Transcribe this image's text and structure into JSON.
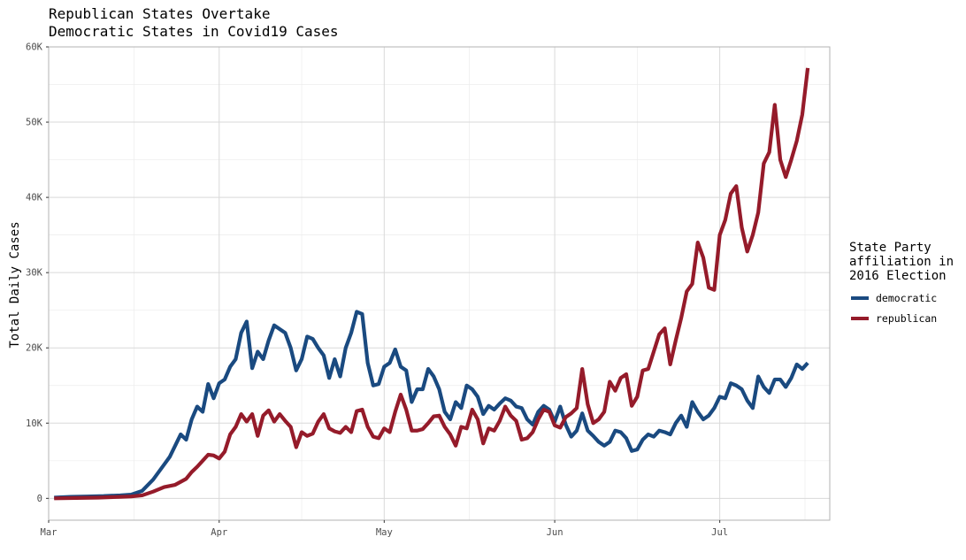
{
  "chart_data": {
    "type": "line",
    "title_lines": [
      "Republican States Overtake",
      "Democratic States in Covid19 Cases"
    ],
    "ylabel": "Total Daily Cases",
    "xlabel": "",
    "ylim": [
      0,
      60000
    ],
    "xlim_dates": [
      "2020-03-01",
      "2020-07-21"
    ],
    "y_ticks": [
      {
        "value": 0,
        "label": "0"
      },
      {
        "value": 10000,
        "label": "10K"
      },
      {
        "value": 20000,
        "label": "20K"
      },
      {
        "value": 30000,
        "label": "30K"
      },
      {
        "value": 40000,
        "label": "40K"
      },
      {
        "value": 50000,
        "label": "50K"
      },
      {
        "value": 60000,
        "label": "60K"
      }
    ],
    "x_ticks": [
      {
        "date": "2020-03-01",
        "label": "Mar"
      },
      {
        "date": "2020-04-01",
        "label": "Apr"
      },
      {
        "date": "2020-05-01",
        "label": "May"
      },
      {
        "date": "2020-06-01",
        "label": "Jun"
      },
      {
        "date": "2020-07-01",
        "label": "Jul"
      }
    ],
    "grid": true,
    "legend": {
      "title_lines": [
        "State Party",
        "affiliation in",
        "2016 Election"
      ],
      "placement": "right"
    },
    "series": [
      {
        "name": "democratic",
        "color": "#1a4a80",
        "points": [
          [
            "2020-03-02",
            100
          ],
          [
            "2020-03-05",
            200
          ],
          [
            "2020-03-08",
            250
          ],
          [
            "2020-03-11",
            300
          ],
          [
            "2020-03-14",
            400
          ],
          [
            "2020-03-16",
            500
          ],
          [
            "2020-03-18",
            1000
          ],
          [
            "2020-03-20",
            2500
          ],
          [
            "2020-03-22",
            4500
          ],
          [
            "2020-03-23",
            5500
          ],
          [
            "2020-03-24",
            7000
          ],
          [
            "2020-03-25",
            8500
          ],
          [
            "2020-03-26",
            7800
          ],
          [
            "2020-03-27",
            10500
          ],
          [
            "2020-03-28",
            12200
          ],
          [
            "2020-03-29",
            11500
          ],
          [
            "2020-03-30",
            15200
          ],
          [
            "2020-03-31",
            13300
          ],
          [
            "2020-04-01",
            15300
          ],
          [
            "2020-04-02",
            15800
          ],
          [
            "2020-04-03",
            17500
          ],
          [
            "2020-04-04",
            18500
          ],
          [
            "2020-04-05",
            22000
          ],
          [
            "2020-04-06",
            23500
          ],
          [
            "2020-04-07",
            17300
          ],
          [
            "2020-04-08",
            19500
          ],
          [
            "2020-04-09",
            18500
          ],
          [
            "2020-04-10",
            21000
          ],
          [
            "2020-04-11",
            23000
          ],
          [
            "2020-04-12",
            22500
          ],
          [
            "2020-04-13",
            22000
          ],
          [
            "2020-04-14",
            20000
          ],
          [
            "2020-04-15",
            17000
          ],
          [
            "2020-04-16",
            18500
          ],
          [
            "2020-04-17",
            21500
          ],
          [
            "2020-04-18",
            21200
          ],
          [
            "2020-04-19",
            20000
          ],
          [
            "2020-04-20",
            19000
          ],
          [
            "2020-04-21",
            16000
          ],
          [
            "2020-04-22",
            18500
          ],
          [
            "2020-04-23",
            16200
          ],
          [
            "2020-04-24",
            20000
          ],
          [
            "2020-04-25",
            22000
          ],
          [
            "2020-04-26",
            24800
          ],
          [
            "2020-04-27",
            24500
          ],
          [
            "2020-04-28",
            18000
          ],
          [
            "2020-04-29",
            15000
          ],
          [
            "2020-04-30",
            15200
          ],
          [
            "2020-05-01",
            17500
          ],
          [
            "2020-05-02",
            18000
          ],
          [
            "2020-05-03",
            19800
          ],
          [
            "2020-05-04",
            17500
          ],
          [
            "2020-05-05",
            17000
          ],
          [
            "2020-05-06",
            12800
          ],
          [
            "2020-05-07",
            14500
          ],
          [
            "2020-05-08",
            14500
          ],
          [
            "2020-05-09",
            17200
          ],
          [
            "2020-05-10",
            16200
          ],
          [
            "2020-05-11",
            14500
          ],
          [
            "2020-05-12",
            11500
          ],
          [
            "2020-05-13",
            10500
          ],
          [
            "2020-05-14",
            12800
          ],
          [
            "2020-05-15",
            12000
          ],
          [
            "2020-05-16",
            15000
          ],
          [
            "2020-05-17",
            14500
          ],
          [
            "2020-05-18",
            13500
          ],
          [
            "2020-05-19",
            11200
          ],
          [
            "2020-05-20",
            12300
          ],
          [
            "2020-05-21",
            11800
          ],
          [
            "2020-05-22",
            12600
          ],
          [
            "2020-05-23",
            13300
          ],
          [
            "2020-05-24",
            13000
          ],
          [
            "2020-05-25",
            12200
          ],
          [
            "2020-05-26",
            12000
          ],
          [
            "2020-05-27",
            10500
          ],
          [
            "2020-05-28",
            9800
          ],
          [
            "2020-05-29",
            11500
          ],
          [
            "2020-05-30",
            12300
          ],
          [
            "2020-05-31",
            11800
          ],
          [
            "2020-06-01",
            10200
          ],
          [
            "2020-06-02",
            12200
          ],
          [
            "2020-06-03",
            9800
          ],
          [
            "2020-06-04",
            8200
          ],
          [
            "2020-06-05",
            9000
          ],
          [
            "2020-06-06",
            11300
          ],
          [
            "2020-06-07",
            9000
          ],
          [
            "2020-06-08",
            8300
          ],
          [
            "2020-06-09",
            7500
          ],
          [
            "2020-06-10",
            7000
          ],
          [
            "2020-06-11",
            7500
          ],
          [
            "2020-06-12",
            9000
          ],
          [
            "2020-06-13",
            8800
          ],
          [
            "2020-06-14",
            8000
          ],
          [
            "2020-06-15",
            6300
          ],
          [
            "2020-06-16",
            6500
          ],
          [
            "2020-06-17",
            7800
          ],
          [
            "2020-06-18",
            8500
          ],
          [
            "2020-06-19",
            8200
          ],
          [
            "2020-06-20",
            9000
          ],
          [
            "2020-06-21",
            8800
          ],
          [
            "2020-06-22",
            8500
          ],
          [
            "2020-06-23",
            10000
          ],
          [
            "2020-06-24",
            11000
          ],
          [
            "2020-06-25",
            9500
          ],
          [
            "2020-06-26",
            12800
          ],
          [
            "2020-06-27",
            11500
          ],
          [
            "2020-06-28",
            10500
          ],
          [
            "2020-06-29",
            11000
          ],
          [
            "2020-06-30",
            12000
          ],
          [
            "2020-07-01",
            13500
          ],
          [
            "2020-07-02",
            13300
          ],
          [
            "2020-07-03",
            15300
          ],
          [
            "2020-07-04",
            15000
          ],
          [
            "2020-07-05",
            14500
          ],
          [
            "2020-07-06",
            13000
          ],
          [
            "2020-07-07",
            12000
          ],
          [
            "2020-07-08",
            16200
          ],
          [
            "2020-07-09",
            14800
          ],
          [
            "2020-07-10",
            14000
          ],
          [
            "2020-07-11",
            15800
          ],
          [
            "2020-07-12",
            15800
          ],
          [
            "2020-07-13",
            14800
          ],
          [
            "2020-07-14",
            16000
          ],
          [
            "2020-07-15",
            17800
          ],
          [
            "2020-07-16",
            17200
          ],
          [
            "2020-07-17",
            18000
          ]
        ]
      },
      {
        "name": "republican",
        "color": "#951b2a",
        "points": [
          [
            "2020-03-02",
            0
          ],
          [
            "2020-03-06",
            50
          ],
          [
            "2020-03-10",
            100
          ],
          [
            "2020-03-14",
            200
          ],
          [
            "2020-03-16",
            250
          ],
          [
            "2020-03-18",
            400
          ],
          [
            "2020-03-20",
            900
          ],
          [
            "2020-03-22",
            1500
          ],
          [
            "2020-03-24",
            1800
          ],
          [
            "2020-03-25",
            2200
          ],
          [
            "2020-03-26",
            2600
          ],
          [
            "2020-03-27",
            3500
          ],
          [
            "2020-03-28",
            4200
          ],
          [
            "2020-03-29",
            5000
          ],
          [
            "2020-03-30",
            5800
          ],
          [
            "2020-03-31",
            5700
          ],
          [
            "2020-04-01",
            5300
          ],
          [
            "2020-04-02",
            6200
          ],
          [
            "2020-04-03",
            8500
          ],
          [
            "2020-04-04",
            9500
          ],
          [
            "2020-04-05",
            11200
          ],
          [
            "2020-04-06",
            10200
          ],
          [
            "2020-04-07",
            11200
          ],
          [
            "2020-04-08",
            8300
          ],
          [
            "2020-04-09",
            11000
          ],
          [
            "2020-04-10",
            11700
          ],
          [
            "2020-04-11",
            10200
          ],
          [
            "2020-04-12",
            11200
          ],
          [
            "2020-04-13",
            10300
          ],
          [
            "2020-04-14",
            9500
          ],
          [
            "2020-04-15",
            6800
          ],
          [
            "2020-04-16",
            8800
          ],
          [
            "2020-04-17",
            8300
          ],
          [
            "2020-04-18",
            8600
          ],
          [
            "2020-04-19",
            10200
          ],
          [
            "2020-04-20",
            11200
          ],
          [
            "2020-04-21",
            9300
          ],
          [
            "2020-04-22",
            8900
          ],
          [
            "2020-04-23",
            8700
          ],
          [
            "2020-04-24",
            9500
          ],
          [
            "2020-04-25",
            8800
          ],
          [
            "2020-04-26",
            11600
          ],
          [
            "2020-04-27",
            11800
          ],
          [
            "2020-04-28",
            9500
          ],
          [
            "2020-04-29",
            8200
          ],
          [
            "2020-04-30",
            8000
          ],
          [
            "2020-05-01",
            9300
          ],
          [
            "2020-05-02",
            8800
          ],
          [
            "2020-05-03",
            11500
          ],
          [
            "2020-05-04",
            13800
          ],
          [
            "2020-05-05",
            11800
          ],
          [
            "2020-05-06",
            9000
          ],
          [
            "2020-05-07",
            9000
          ],
          [
            "2020-05-08",
            9200
          ],
          [
            "2020-05-09",
            10000
          ],
          [
            "2020-05-10",
            10900
          ],
          [
            "2020-05-11",
            11000
          ],
          [
            "2020-05-12",
            9500
          ],
          [
            "2020-05-13",
            8500
          ],
          [
            "2020-05-14",
            7000
          ],
          [
            "2020-05-15",
            9500
          ],
          [
            "2020-05-16",
            9300
          ],
          [
            "2020-05-17",
            11800
          ],
          [
            "2020-05-18",
            10500
          ],
          [
            "2020-05-19",
            7300
          ],
          [
            "2020-05-20",
            9300
          ],
          [
            "2020-05-21",
            9000
          ],
          [
            "2020-05-22",
            10300
          ],
          [
            "2020-05-23",
            12200
          ],
          [
            "2020-05-24",
            11000
          ],
          [
            "2020-05-25",
            10300
          ],
          [
            "2020-05-26",
            7800
          ],
          [
            "2020-05-27",
            8000
          ],
          [
            "2020-05-28",
            8800
          ],
          [
            "2020-05-29",
            10500
          ],
          [
            "2020-05-30",
            11800
          ],
          [
            "2020-05-31",
            11500
          ],
          [
            "2020-06-01",
            9700
          ],
          [
            "2020-06-02",
            9400
          ],
          [
            "2020-06-03",
            10800
          ],
          [
            "2020-06-04",
            11300
          ],
          [
            "2020-06-05",
            12000
          ],
          [
            "2020-06-06",
            17200
          ],
          [
            "2020-06-07",
            12500
          ],
          [
            "2020-06-08",
            10000
          ],
          [
            "2020-06-09",
            10500
          ],
          [
            "2020-06-10",
            11500
          ],
          [
            "2020-06-11",
            15500
          ],
          [
            "2020-06-12",
            14300
          ],
          [
            "2020-06-13",
            16000
          ],
          [
            "2020-06-14",
            16500
          ],
          [
            "2020-06-15",
            12300
          ],
          [
            "2020-06-16",
            13500
          ],
          [
            "2020-06-17",
            17000
          ],
          [
            "2020-06-18",
            17200
          ],
          [
            "2020-06-19",
            19500
          ],
          [
            "2020-06-20",
            21800
          ],
          [
            "2020-06-21",
            22600
          ],
          [
            "2020-06-22",
            17800
          ],
          [
            "2020-06-23",
            21000
          ],
          [
            "2020-06-24",
            24000
          ],
          [
            "2020-06-25",
            27500
          ],
          [
            "2020-06-26",
            28500
          ],
          [
            "2020-06-27",
            34000
          ],
          [
            "2020-06-28",
            32000
          ],
          [
            "2020-06-29",
            28000
          ],
          [
            "2020-06-30",
            27700
          ],
          [
            "2020-07-01",
            35000
          ],
          [
            "2020-07-02",
            37000
          ],
          [
            "2020-07-03",
            40500
          ],
          [
            "2020-07-04",
            41500
          ],
          [
            "2020-07-05",
            36000
          ],
          [
            "2020-07-06",
            32800
          ],
          [
            "2020-07-07",
            35000
          ],
          [
            "2020-07-08",
            38000
          ],
          [
            "2020-07-09",
            44500
          ],
          [
            "2020-07-10",
            46000
          ],
          [
            "2020-07-11",
            52300
          ],
          [
            "2020-07-12",
            45000
          ],
          [
            "2020-07-13",
            42700
          ],
          [
            "2020-07-14",
            45000
          ],
          [
            "2020-07-15",
            47500
          ],
          [
            "2020-07-16",
            51000
          ],
          [
            "2020-07-17",
            57200
          ]
        ]
      }
    ]
  }
}
